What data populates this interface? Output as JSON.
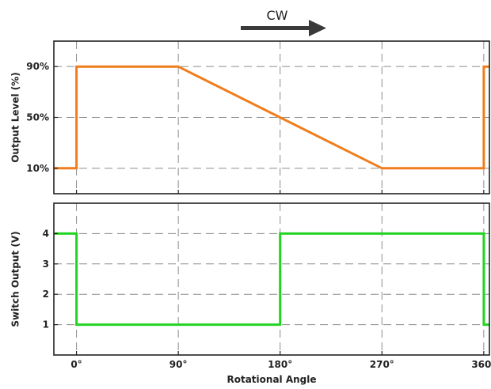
{
  "direction": {
    "label": "CW",
    "arrow_icon": "arrow-right-icon"
  },
  "chart_data": [
    {
      "type": "line",
      "title": "",
      "xlabel": "",
      "ylabel": "Output Level (%)",
      "xlim": [
        -20,
        365
      ],
      "ylim": [
        -10,
        110
      ],
      "x_ticks": [
        0,
        90,
        180,
        270,
        360
      ],
      "y_ticks": [
        10,
        50,
        90
      ],
      "y_tick_labels": [
        "10%",
        "50%",
        "90%"
      ],
      "grid": true,
      "series": [
        {
          "color": "#f07d1d",
          "x": [
            -20,
            0,
            0,
            90,
            270,
            360,
            360,
            365
          ],
          "y": [
            10,
            10,
            90,
            90,
            10,
            10,
            90,
            90
          ]
        }
      ]
    },
    {
      "type": "line",
      "title": "",
      "xlabel": "Rotational Angle",
      "ylabel": "Switch Output (V)",
      "xlim": [
        -20,
        365
      ],
      "ylim": [
        0,
        5
      ],
      "x_ticks": [
        0,
        90,
        180,
        270,
        360
      ],
      "x_tick_labels": [
        "0°",
        "90°",
        "180°",
        "270°",
        "360°"
      ],
      "y_ticks": [
        1,
        2,
        3,
        4
      ],
      "y_tick_labels": [
        "1",
        "2",
        "3",
        "4"
      ],
      "grid": true,
      "series": [
        {
          "color": "#22d422",
          "x": [
            -20,
            0,
            0,
            180,
            180,
            360,
            360,
            365
          ],
          "y": [
            4,
            4,
            1,
            1,
            4,
            4,
            1,
            1
          ]
        }
      ]
    }
  ]
}
